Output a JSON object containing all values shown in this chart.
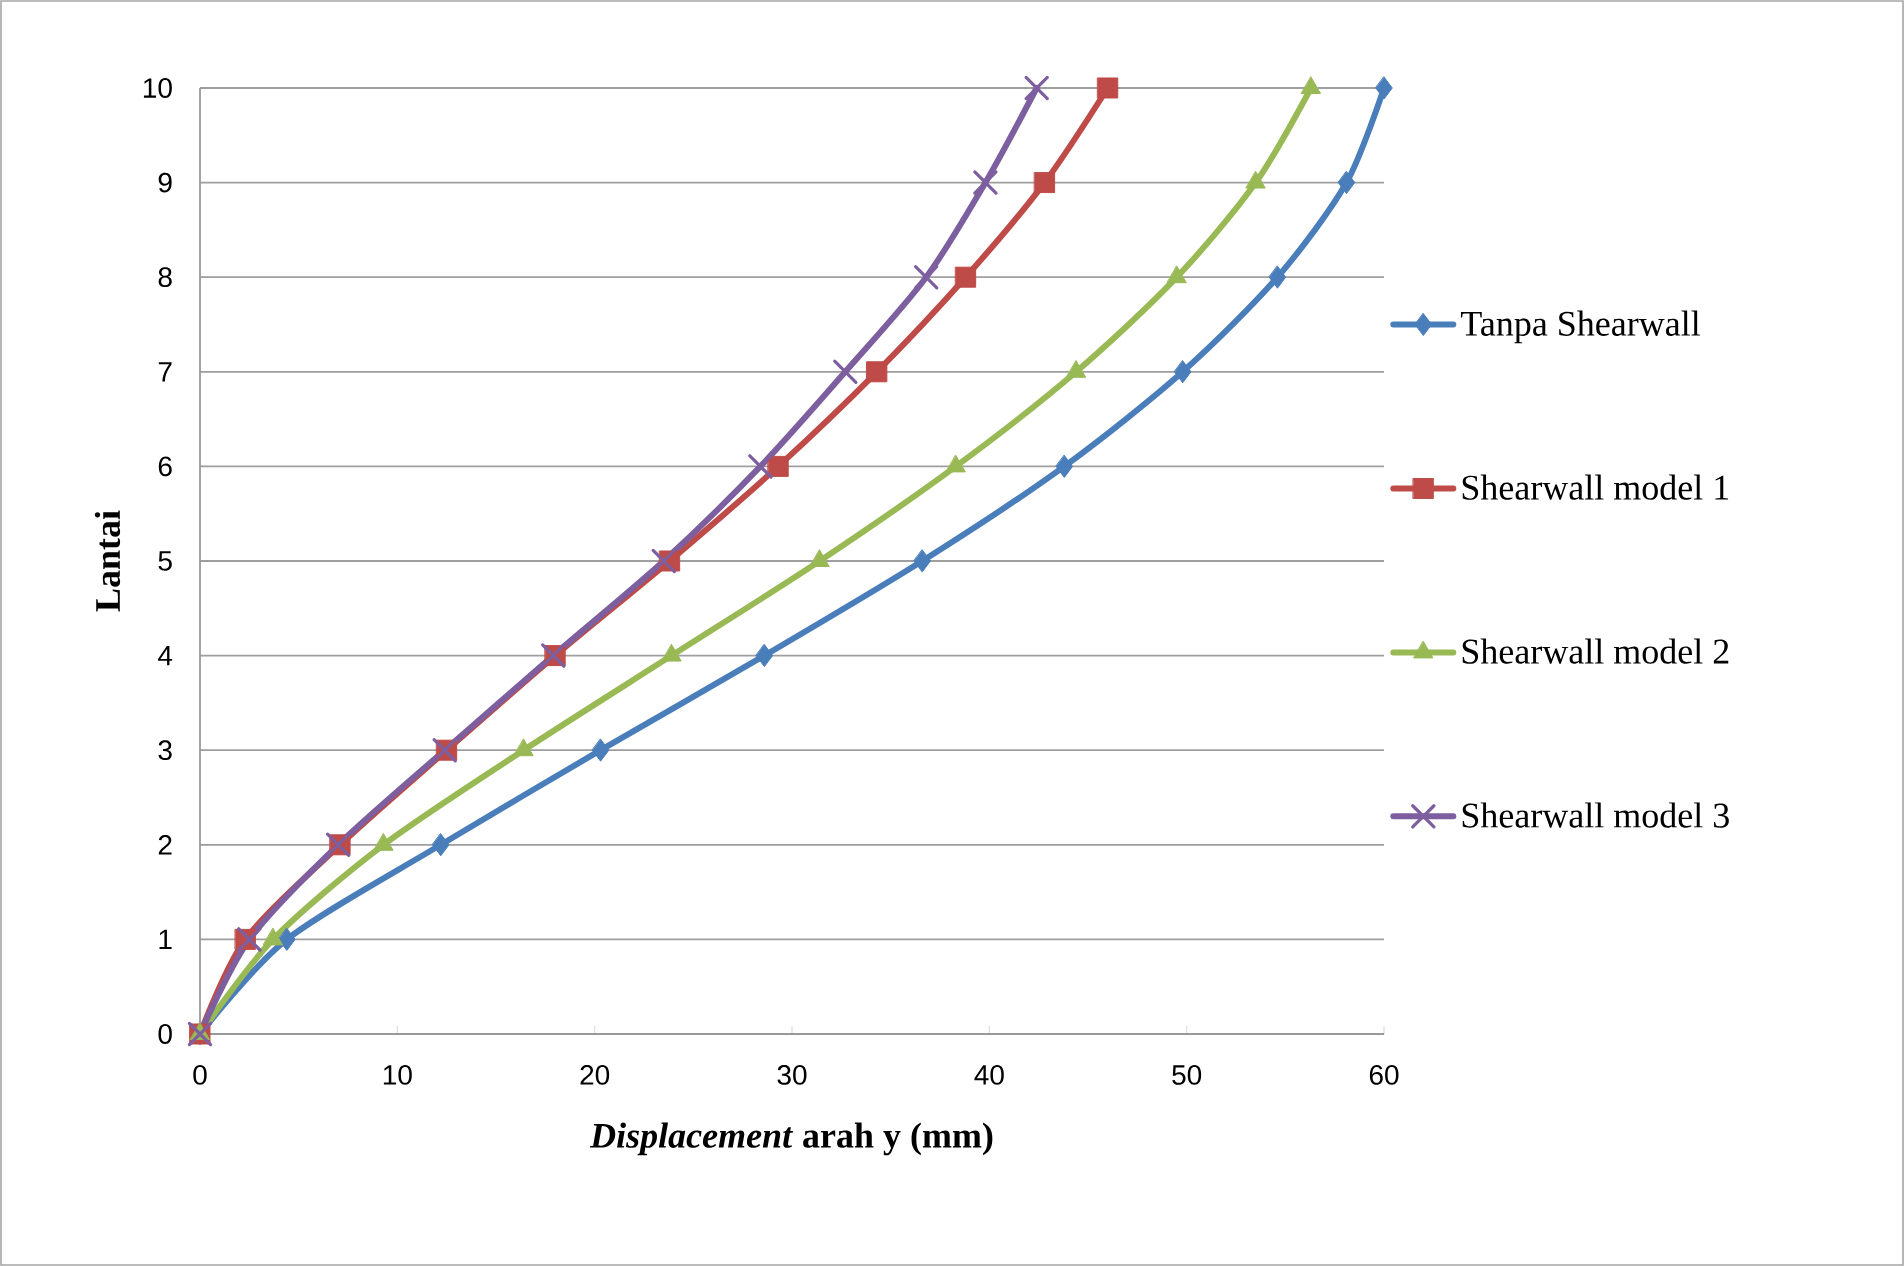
{
  "chart_data": {
    "type": "line",
    "xlabel": "*Displacement* arah y (mm)",
    "ylabel": "Lantai",
    "xlim": [
      0,
      60
    ],
    "xticks": [
      0,
      10,
      20,
      30,
      40,
      50,
      60
    ],
    "ylim": [
      0,
      10
    ],
    "yticks": [
      0,
      1,
      2,
      3,
      4,
      5,
      6,
      7,
      8,
      9,
      10
    ],
    "grid": "y",
    "legend": "right",
    "series": [
      {
        "name": "Tanpa Shearwall",
        "color": "#4a7ebb",
        "marker": "diamond",
        "x": [
          0,
          4.4,
          12.2,
          20.3,
          28.6,
          36.6,
          43.8,
          49.8,
          54.6,
          58.1,
          60
        ],
        "values": [
          0,
          1,
          2,
          3,
          4,
          5,
          6,
          7,
          8,
          9,
          10
        ]
      },
      {
        "name": "Shearwall model 1",
        "color": "#be4b48",
        "marker": "square",
        "x": [
          0,
          2.3,
          7.1,
          12.5,
          18.0,
          23.8,
          29.3,
          34.3,
          38.8,
          42.8,
          46.0
        ],
        "values": [
          0,
          1,
          2,
          3,
          4,
          5,
          6,
          7,
          8,
          9,
          10
        ]
      },
      {
        "name": "Shearwall model 2",
        "color": "#98b954",
        "marker": "triangle",
        "x": [
          0,
          3.7,
          9.3,
          16.4,
          23.9,
          31.4,
          38.3,
          44.4,
          49.5,
          53.5,
          56.3
        ],
        "values": [
          0,
          1,
          2,
          3,
          4,
          5,
          6,
          7,
          8,
          9,
          10
        ]
      },
      {
        "name": "Shearwall model 3",
        "color": "#7d5fa0",
        "marker": "cross",
        "x": [
          0,
          2.5,
          7.0,
          12.4,
          17.9,
          23.5,
          28.4,
          32.7,
          36.8,
          39.8,
          42.4
        ],
        "values": [
          0,
          1,
          2,
          3,
          4,
          5,
          6,
          7,
          8,
          9,
          10
        ]
      }
    ]
  }
}
